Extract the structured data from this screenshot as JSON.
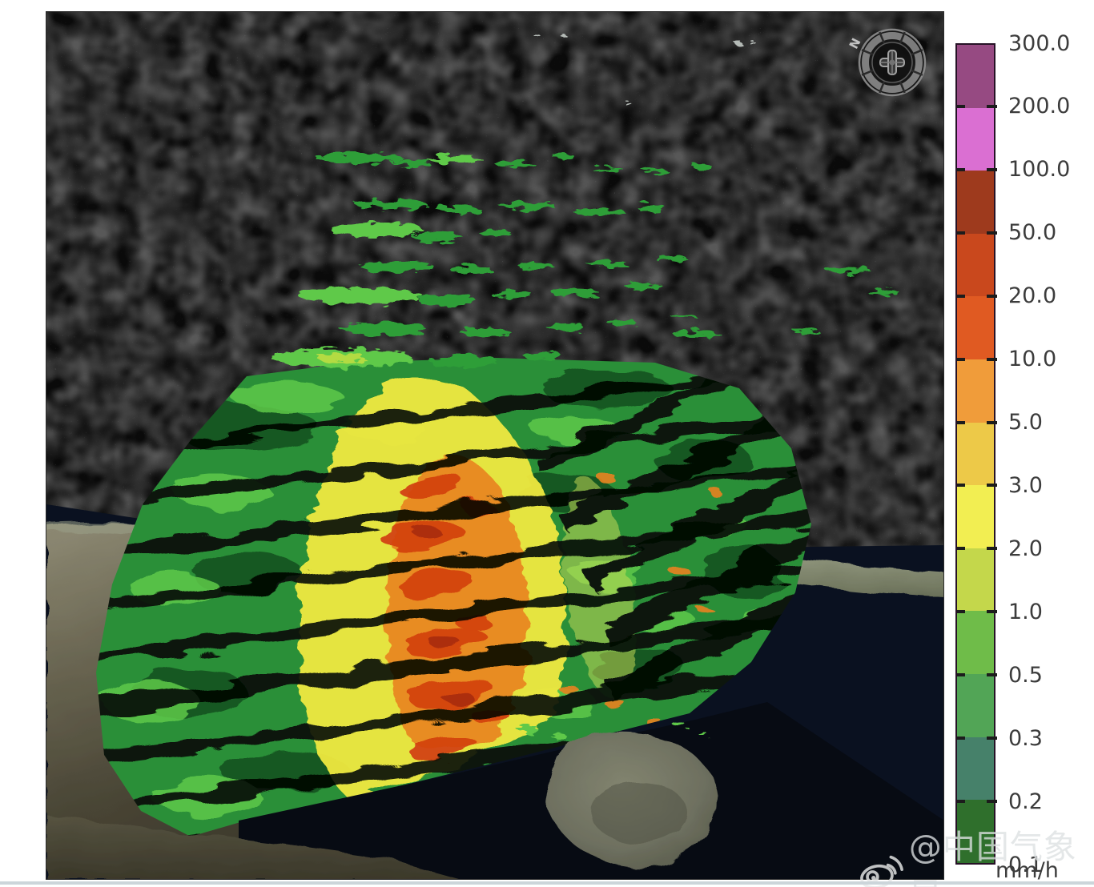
{
  "scene": {
    "compass_north_label": "N"
  },
  "colorbar": {
    "unit_label": "mm/h",
    "tick_labels": [
      "300.0",
      "200.0",
      "100.0",
      "50.0",
      "20.0",
      "10.0",
      "5.0",
      "3.0",
      "2.0",
      "1.0",
      "0.5",
      "0.3",
      "0.2",
      "0.1"
    ],
    "segment_colors_top_to_bottom": [
      "#964a82",
      "#da6fd2",
      "#9e3a1d",
      "#c9481d",
      "#e05a22",
      "#f09c3a",
      "#edc948",
      "#f2ee52",
      "#c4d74b",
      "#6fbc49",
      "#52a556",
      "#46816a",
      "#2f6f2c"
    ],
    "label_color": "#3c3c3c"
  },
  "watermark": {
    "handle": "@中国气象局",
    "icon": "weibo-icon"
  },
  "palette": {
    "sky": "#0a0a0a",
    "sea": "#0a1120",
    "sea_foreground": "#070b13",
    "land_light": "#8e8a74",
    "land_dark": "#3b382a",
    "island": "#787a69",
    "rain_green_dark": "#15541f",
    "rain_green": "#2c8f38",
    "rain_green_light": "#5ec94a",
    "rain_yellow": "#ede73f",
    "rain_orange": "#e8821f",
    "rain_red": "#d34311"
  },
  "chart_data": {
    "type": "heatmap",
    "title": "",
    "legend_position": "right",
    "unit": "mm/h",
    "legend_values": [
      300.0,
      200.0,
      100.0,
      50.0,
      20.0,
      10.0,
      5.0,
      3.0,
      2.0,
      1.0,
      0.5,
      0.3,
      0.2,
      0.1
    ],
    "legend_colors_high_to_low": [
      "#964a82",
      "#da6fd2",
      "#9e3a1d",
      "#c9481d",
      "#e05a22",
      "#f09c3a",
      "#edc948",
      "#f2ee52",
      "#c4d74b",
      "#6fbc49",
      "#52a556",
      "#46816a",
      "#2f6f2c"
    ]
  }
}
